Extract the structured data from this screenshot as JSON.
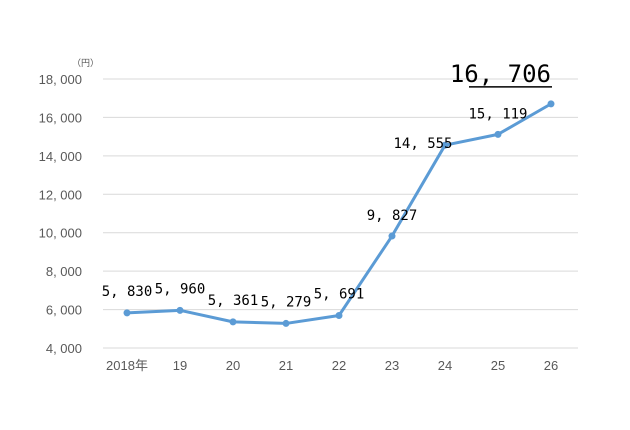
{
  "chart_data": {
    "type": "line",
    "unit": "（円）",
    "categories": [
      "2018年",
      "19",
      "20",
      "21",
      "22",
      "23",
      "24",
      "25",
      "26"
    ],
    "series": [
      {
        "values": [
          5830,
          5960,
          5361,
          5279,
          5691,
          9827,
          14555,
          15119,
          16706
        ],
        "color": "#5b9bd5"
      }
    ],
    "data_labels": [
      "5, 830",
      "5, 960",
      "5, 361",
      "5, 279",
      "5, 691",
      "9, 827",
      "14, 555",
      "15, 119",
      "16, 706"
    ],
    "highlight_index": 8,
    "yticks": [
      4000,
      6000,
      8000,
      10000,
      12000,
      14000,
      16000,
      18000
    ],
    "ytick_labels": [
      "4, 000",
      "6, 000",
      "8, 000",
      "10, 000",
      "12, 000",
      "14, 000",
      "16, 000",
      "18, 000"
    ],
    "ylim": [
      4000,
      18000
    ],
    "grid": true,
    "legend": "none"
  }
}
